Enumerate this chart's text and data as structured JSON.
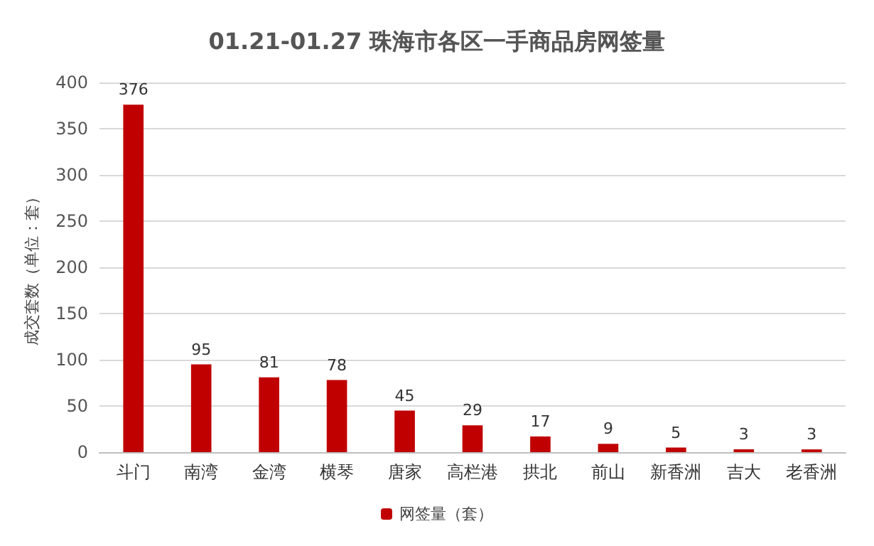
{
  "chart_data": {
    "type": "bar",
    "title": "01.21-01.27 珠海市各区一手商品房网签量",
    "ylabel": "成交套数（单位：套）",
    "categories": [
      "斗门",
      "南湾",
      "金湾",
      "横琴",
      "唐家",
      "高栏港",
      "拱北",
      "前山",
      "新香洲",
      "吉大",
      "老香洲"
    ],
    "series": [
      {
        "name": "网签量（套）",
        "color": "#c00000",
        "values": [
          376,
          95,
          81,
          78,
          45,
          29,
          17,
          9,
          5,
          3,
          3
        ]
      }
    ],
    "ylim": [
      0,
      400
    ],
    "yticks": [
      0,
      50,
      100,
      150,
      200,
      250,
      300,
      350,
      400
    ],
    "grid": "y",
    "legend": "bottom",
    "data_labels": true
  }
}
